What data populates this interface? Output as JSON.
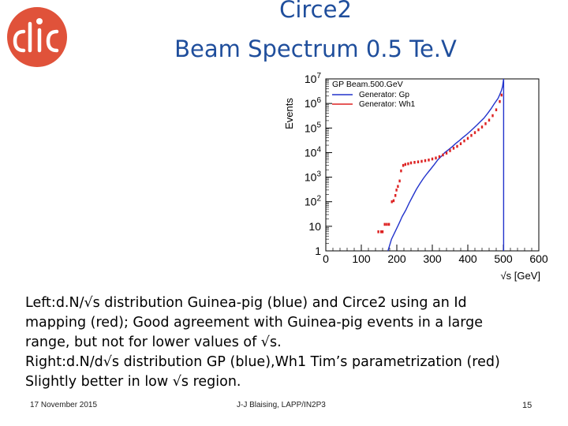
{
  "slide": {
    "title_line1": "Circe2",
    "title_line2": "Beam Spectrum 0.5 Te.V",
    "logo_text": "CLIC",
    "body_lines": [
      "Left:d.N/√s distribution Guinea-pig (blue) and Circe2 using an Id",
      "mapping (red); Good agreement with Guinea-pig events in a large",
      "range, but not for lower values of √s.",
      "Right:d.N/d√s distribution GP (blue),Wh1 Tim’s parametrization (red)",
      "Slightly better in low √s region."
    ],
    "footer": {
      "date": "17 November 2015",
      "author": "J-J Blaising, LAPP/IN2P3",
      "page": "15"
    }
  },
  "colors": {
    "title": "#1f4e9c",
    "logo": "#e0523a",
    "series_gp": "#2233cc",
    "series_wh1": "#dd2222"
  },
  "chart_data": {
    "type": "line",
    "title": "GP Beam.500.GeV",
    "xlabel": "√s [GeV]",
    "ylabel": "Events",
    "xlim": [
      0,
      600
    ],
    "ylog": true,
    "ylim": [
      1,
      10000000
    ],
    "x_ticks": [
      0,
      100,
      200,
      300,
      400,
      500,
      600
    ],
    "y_ticks": [
      {
        "v": 1,
        "m": "1",
        "e": ""
      },
      {
        "v": 10,
        "m": "10",
        "e": ""
      },
      {
        "v": 100,
        "m": "10",
        "e": "2"
      },
      {
        "v": 1000,
        "m": "10",
        "e": "3"
      },
      {
        "v": 10000,
        "m": "10",
        "e": "4"
      },
      {
        "v": 100000,
        "m": "10",
        "e": "5"
      },
      {
        "v": 1000000,
        "m": "10",
        "e": "6"
      },
      {
        "v": 10000000,
        "m": "10",
        "e": "7"
      }
    ],
    "legend_position": "top-left",
    "series": [
      {
        "name": "Generator:  Gp",
        "style": "line",
        "x": [
          175,
          185,
          195,
          205,
          215,
          225,
          235,
          245,
          255,
          265,
          275,
          285,
          295,
          305,
          315,
          325,
          335,
          345,
          355,
          365,
          375,
          385,
          395,
          405,
          415,
          425,
          435,
          445,
          455,
          465,
          475,
          485,
          490,
          495,
          498,
          500,
          501,
          501
        ],
        "y": [
          1,
          3,
          6,
          12,
          25,
          45,
          90,
          170,
          320,
          550,
          900,
          1400,
          2100,
          3200,
          5000,
          7000,
          10000,
          13000,
          17000,
          23000,
          30000,
          40000,
          52000,
          70000,
          95000,
          130000,
          180000,
          250000,
          380000,
          600000,
          1000000,
          1600000,
          2300000,
          3500000,
          5000000,
          8000000,
          10000000,
          1
        ]
      },
      {
        "name": "Generator:  Wh1",
        "style": "markers",
        "x": [
          148,
          156,
          160,
          166,
          172,
          178,
          186,
          191,
          196,
          199,
          203,
          208,
          212,
          218,
          224,
          232,
          240,
          250,
          260,
          270,
          280,
          290,
          300,
          310,
          320,
          330,
          340,
          350,
          360,
          370,
          380,
          390,
          400,
          410,
          420,
          430,
          440,
          450,
          460,
          470,
          480,
          490,
          495
        ],
        "y": [
          6,
          6,
          6,
          12,
          12,
          12,
          100,
          110,
          180,
          300,
          420,
          700,
          1800,
          3000,
          3300,
          3500,
          3800,
          4000,
          4200,
          4400,
          4700,
          5000,
          5500,
          6000,
          6800,
          8000,
          9500,
          12000,
          15000,
          18000,
          23000,
          30000,
          38000,
          50000,
          65000,
          85000,
          110000,
          150000,
          210000,
          320000,
          550000,
          1200000,
          2200000
        ]
      }
    ]
  }
}
